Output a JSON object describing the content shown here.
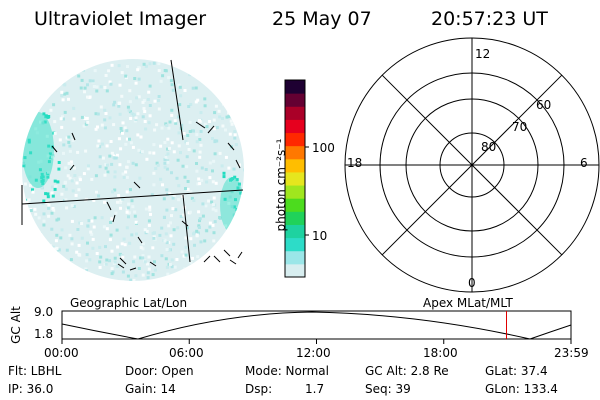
{
  "header": {
    "instrument": "Ultraviolet Imager",
    "date": "25 May 07",
    "time": "20:57:23 UT"
  },
  "colorbar": {
    "unit_label": "photon cm⁻²s⁻¹",
    "ticks": [
      "100",
      "10"
    ],
    "colors": [
      "#d8eef0",
      "#9be6e8",
      "#2ddcc8",
      "#1ed2a0",
      "#20d25a",
      "#4cdc1e",
      "#a0e61e",
      "#e6e61e",
      "#ffbe00",
      "#ff7800",
      "#ff2800",
      "#e6001e",
      "#aa0028",
      "#640032",
      "#1e0032"
    ]
  },
  "polar_plot": {
    "mlt_labels": {
      "top": "12",
      "left": "18",
      "right": "6",
      "bottom": "0"
    },
    "lat_labels": [
      "80",
      "70",
      "60"
    ]
  },
  "timeline": {
    "left_title": "Geographic Lat/Lon",
    "right_title": "Apex MLat/MLT",
    "y_axis_label": "GC Alt",
    "y_ticks": [
      "9.0",
      "1.8"
    ],
    "x_ticks": [
      "00:00",
      "06:00",
      "12:00",
      "18:00",
      "23:59"
    ],
    "marker_time_hours": 20.96,
    "marker_color": "#e00000"
  },
  "info": {
    "filter": "Flt: LBHL",
    "door": "Door: Open",
    "mode": "Mode: Normal",
    "gc_alt": "GC Alt: 2.8 Re",
    "glat": "GLat:  37.4",
    "ip": "IP: 36.0",
    "gain": "Gain: 14",
    "dsp_label": "Dsp:",
    "dsp_value": "1.7",
    "seq": "Seq: 39",
    "glon": "GLon: 133.4"
  }
}
